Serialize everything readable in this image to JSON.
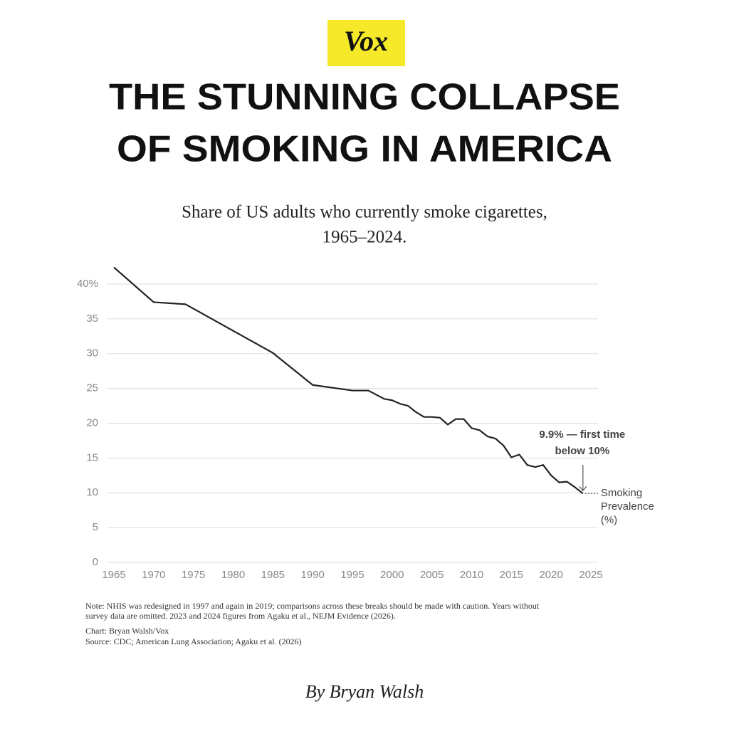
{
  "chart_data": {
    "type": "line",
    "brand": "Vox",
    "title": [
      "THE STUNNING COLLAPSE",
      "OF SMOKING IN AMERICA"
    ],
    "subtitle": [
      "Share of US adults who currently smoke cigarettes,",
      "1965–2024."
    ],
    "x": [
      1965,
      1970,
      1974,
      1985,
      1990,
      1995,
      1997,
      1998,
      1999,
      2000,
      2001,
      2002,
      2003,
      2004,
      2005,
      2006,
      2007,
      2008,
      2009,
      2010,
      2011,
      2012,
      2013,
      2014,
      2015,
      2016,
      2017,
      2018,
      2019,
      2020,
      2021,
      2022,
      2023,
      2024
    ],
    "series": [
      {
        "name": [
          "Smoking",
          "Prevalence",
          "(%)"
        ],
        "color": "#222222",
        "values": [
          42.4,
          37.4,
          37.1,
          30.1,
          25.5,
          24.7,
          24.7,
          24.1,
          23.5,
          23.3,
          22.8,
          22.5,
          21.6,
          20.9,
          20.9,
          20.8,
          19.8,
          20.6,
          20.6,
          19.3,
          19.0,
          18.1,
          17.8,
          16.8,
          15.1,
          15.5,
          14.0,
          13.7,
          14.0,
          12.5,
          11.5,
          11.6,
          10.8,
          9.9
        ]
      }
    ],
    "annotation": [
      "9.9% — first time",
      "below 10%"
    ],
    "xlim": [
      1965,
      2025
    ],
    "xticks": [
      1965,
      1970,
      1975,
      1980,
      1985,
      1990,
      1995,
      2000,
      2005,
      2010,
      2015,
      2020,
      2025
    ],
    "ylim": [
      0,
      40
    ],
    "yticks": [
      0,
      5,
      10,
      15,
      20,
      25,
      30,
      35,
      {
        "value": 40,
        "label": "40%"
      }
    ],
    "grid": true,
    "note": [
      "Note: NHIS was redesigned in 1997 and again in 2019; comparisons across these breaks should be made with caution. Years without",
      "survey data are omitted. 2023 and 2024 figures from Agaku et al., NEJM Evidence (2026)."
    ],
    "credit": "Chart: Bryan Walsh/Vox",
    "source": "Source: CDC; American Lung Association; Agaku et al. (2026)",
    "byline": "By Bryan Walsh"
  }
}
